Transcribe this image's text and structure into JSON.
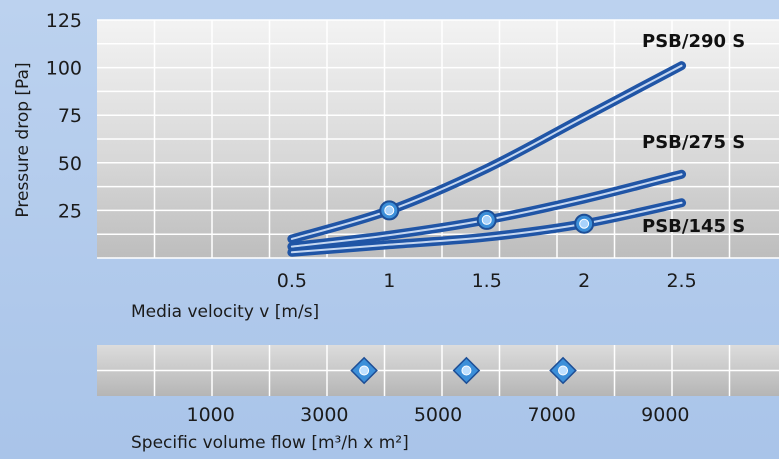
{
  "chart_data": [
    {
      "type": "line",
      "xlabel": "Media velocity v [m/s]",
      "ylabel": "Pressure drop [Pa]",
      "xticks": [
        "0.5",
        "1",
        "1.5",
        "2",
        "2.5"
      ],
      "yticks": [
        "25",
        "50",
        "75",
        "100",
        "125"
      ],
      "xlim": [
        -0.5,
        3
      ],
      "ylim": [
        0,
        125
      ],
      "grid": true,
      "series": [
        {
          "name": "PSB/290 S",
          "x": [
            0.5,
            1,
            1.5,
            2,
            2.5
          ],
          "y": [
            10,
            25,
            47,
            74,
            101
          ],
          "marker_x": 1,
          "marker_y": 25
        },
        {
          "name": "PSB/275 S",
          "x": [
            0.5,
            1,
            1.5,
            2,
            2.5
          ],
          "y": [
            6,
            12,
            20,
            31,
            44
          ],
          "marker_x": 1.5,
          "marker_y": 20
        },
        {
          "name": "PSB/145 S",
          "x": [
            0.5,
            1,
            1.5,
            2,
            2.5
          ],
          "y": [
            3,
            7,
            11,
            18,
            29
          ],
          "marker_x": 2,
          "marker_y": 18
        }
      ],
      "colors": {
        "line": "#2055a6",
        "highlight": "#d7e6fa",
        "marker": "#3c8fd9"
      }
    },
    {
      "type": "scatter",
      "xlabel": "Specific volume flow [m³/h x m²]",
      "xticks": [
        "1000",
        "3000",
        "5000",
        "7000",
        "9000"
      ],
      "xlim": [
        -1000,
        11000
      ],
      "grid": true,
      "points": [
        3700,
        5500,
        7200
      ],
      "colors": {
        "marker": "#3c8fd9",
        "marker_inner": "#bfe0ff"
      }
    }
  ]
}
